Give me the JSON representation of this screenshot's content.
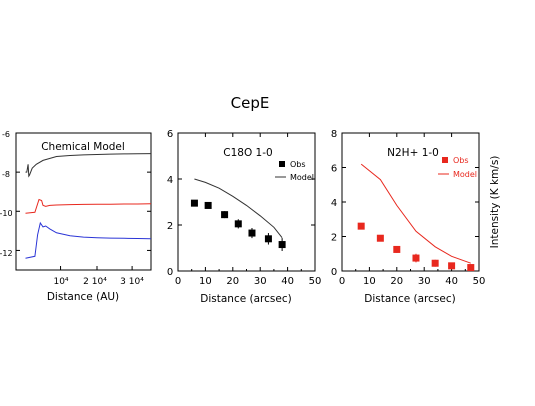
{
  "figure": {
    "title": "CepE"
  },
  "chart_data": [
    {
      "type": "line",
      "title": "Chemical Model",
      "xlabel": "Distance (AU)",
      "ylabel": "",
      "x_tick_labels": [
        "10⁴",
        "2 10⁴",
        "3 10⁴"
      ],
      "y_tick_labels": [
        "-6",
        "-8",
        "-10",
        "-12"
      ],
      "ylim": [
        -13,
        -6
      ],
      "series": [
        {
          "color": "#333333",
          "x": [
            0.07,
            0.08,
            0.09,
            0.095,
            0.1,
            0.12,
            0.15,
            0.2,
            0.3,
            0.4,
            0.5,
            0.6,
            0.7,
            0.8,
            0.9,
            1.0
          ],
          "y": [
            -8.0,
            -8.0,
            -7.6,
            -8.2,
            -8.15,
            -7.8,
            -7.6,
            -7.4,
            -7.2,
            -7.15,
            -7.12,
            -7.1,
            -7.08,
            -7.07,
            -7.06,
            -7.05
          ]
        },
        {
          "color": "#e8281e",
          "x": [
            0.07,
            0.14,
            0.17,
            0.19,
            0.2,
            0.22,
            0.25,
            0.3,
            0.4,
            0.5,
            0.6,
            0.7,
            0.8,
            0.9,
            1.0
          ],
          "y": [
            -10.1,
            -10.05,
            -9.4,
            -9.45,
            -9.7,
            -9.75,
            -9.7,
            -9.68,
            -9.66,
            -9.65,
            -9.64,
            -9.64,
            -9.63,
            -9.63,
            -9.62
          ]
        },
        {
          "color": "#2b35d6",
          "x": [
            0.07,
            0.14,
            0.16,
            0.18,
            0.2,
            0.22,
            0.25,
            0.3,
            0.4,
            0.5,
            0.6,
            0.7,
            0.8,
            0.9,
            1.0
          ],
          "y": [
            -12.4,
            -12.3,
            -11.2,
            -10.6,
            -10.8,
            -10.75,
            -10.9,
            -11.1,
            -11.25,
            -11.32,
            -11.35,
            -11.37,
            -11.38,
            -11.39,
            -11.4
          ]
        }
      ]
    },
    {
      "type": "scatter",
      "title": "C18O 1-0",
      "xlabel": "Distance (arcsec)",
      "ylabel": "",
      "xlim": [
        0,
        50
      ],
      "ylim": [
        0,
        6
      ],
      "x_ticks": [
        0,
        10,
        20,
        30,
        40,
        50
      ],
      "y_ticks": [
        0,
        2,
        4,
        6
      ],
      "legend": {
        "placement": "top-right",
        "obs_label": "Obs",
        "model_label": "Model"
      },
      "obs": {
        "color": "#000000",
        "x": [
          6,
          11,
          17,
          22,
          27,
          33,
          38
        ],
        "y": [
          2.95,
          2.85,
          2.45,
          2.05,
          1.65,
          1.4,
          1.15
        ],
        "err": [
          0.1,
          0.1,
          0.15,
          0.2,
          0.22,
          0.25,
          0.28
        ]
      },
      "model": {
        "color": "#333333",
        "x": [
          6,
          10,
          15,
          20,
          25,
          30,
          35,
          38
        ],
        "y": [
          4.0,
          3.85,
          3.6,
          3.25,
          2.85,
          2.4,
          1.9,
          1.45
        ]
      }
    },
    {
      "type": "scatter",
      "title": "N2H+ 1-0",
      "xlabel": "Distance (arcsec)",
      "ylabel": "Intensity (K km/s)",
      "xlim": [
        0,
        50
      ],
      "ylim": [
        0,
        8
      ],
      "x_ticks": [
        0,
        10,
        20,
        30,
        40,
        50
      ],
      "y_ticks": [
        0,
        2,
        4,
        6,
        8
      ],
      "legend": {
        "placement": "top-right",
        "obs_label": "Obs",
        "model_label": "Model"
      },
      "obs": {
        "color": "#e8281e",
        "x": [
          7,
          14,
          20,
          27,
          34,
          40,
          47
        ],
        "y": [
          2.6,
          1.9,
          1.25,
          0.75,
          0.45,
          0.3,
          0.2
        ],
        "err": [
          0.12,
          0.15,
          0.2,
          0.25,
          0.2,
          0.18,
          0.15
        ]
      },
      "model": {
        "color": "#e8281e",
        "x": [
          7,
          14,
          20,
          27,
          34,
          40,
          47
        ],
        "y": [
          6.2,
          5.3,
          3.8,
          2.3,
          1.4,
          0.85,
          0.45
        ]
      }
    }
  ]
}
